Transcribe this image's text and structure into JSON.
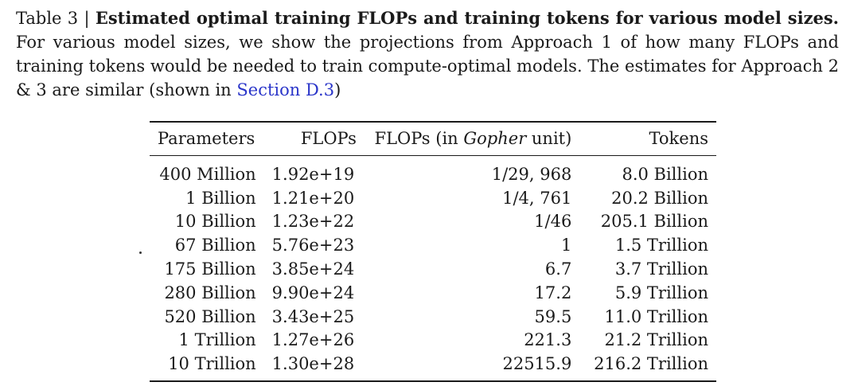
{
  "caption": {
    "label": "Table 3 | ",
    "title": "Estimated optimal training FLOPs and training tokens for various model sizes.",
    "body_before_link": " For various model sizes, we show the projections from Approach 1 of how many FLOPs and training tokens would be needed to train compute-optimal models. The estimates for Approach 2 & 3 are similar (shown in ",
    "link_text": "Section D.3",
    "body_after_link": ")"
  },
  "table": {
    "headers": {
      "parameters": "Parameters",
      "flops": "FLOPs",
      "gopher_prefix": "FLOPs (in ",
      "gopher_italic": "Gopher",
      "gopher_suffix": " unit)",
      "tokens": "Tokens"
    },
    "rows": [
      {
        "parameters": "400 Million",
        "flops": "1.92e+19",
        "gopher": "1/29, 968",
        "tokens": "8.0 Billion"
      },
      {
        "parameters": "1 Billion",
        "flops": "1.21e+20",
        "gopher": "1/4, 761",
        "tokens": "20.2 Billion"
      },
      {
        "parameters": "10 Billion",
        "flops": "1.23e+22",
        "gopher": "1/46",
        "tokens": "205.1 Billion"
      },
      {
        "parameters": "67 Billion",
        "flops": "5.76e+23",
        "gopher": "1",
        "tokens": "1.5 Trillion"
      },
      {
        "parameters": "175 Billion",
        "flops": "3.85e+24",
        "gopher": "6.7",
        "tokens": "3.7 Trillion"
      },
      {
        "parameters": "280 Billion",
        "flops": "9.90e+24",
        "gopher": "17.2",
        "tokens": "5.9 Trillion"
      },
      {
        "parameters": "520 Billion",
        "flops": "3.43e+25",
        "gopher": "59.5",
        "tokens": "11.0 Trillion"
      },
      {
        "parameters": "1 Trillion",
        "flops": "1.27e+26",
        "gopher": "221.3",
        "tokens": "21.2 Trillion"
      },
      {
        "parameters": "10 Trillion",
        "flops": "1.30e+28",
        "gopher": "22515.9",
        "tokens": "216.2 Trillion"
      }
    ]
  }
}
